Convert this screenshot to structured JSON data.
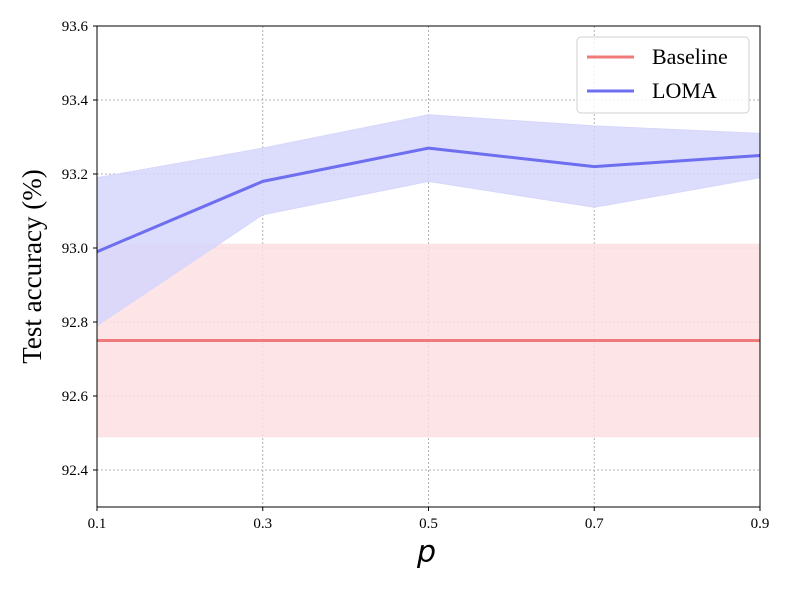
{
  "chart_data": {
    "type": "line",
    "title": "",
    "xlabel": "p",
    "ylabel": "Test accuracy (%)",
    "x": [
      0.1,
      0.3,
      0.5,
      0.7,
      0.9
    ],
    "xlim": [
      0.1,
      0.9
    ],
    "ylim": [
      92.3,
      93.6
    ],
    "xticks": [
      "0.1",
      "0.3",
      "0.5",
      "0.7",
      "0.9"
    ],
    "yticks": [
      "92.4",
      "92.6",
      "92.8",
      "93.0",
      "93.2",
      "93.4",
      "93.6"
    ],
    "grid": true,
    "legend_position": "top-right",
    "series": [
      {
        "name": "Baseline",
        "color": "#f07a7a",
        "band_color": "#fde1e3",
        "values": [
          92.75,
          92.75,
          92.75,
          92.75,
          92.75
        ],
        "lower": [
          92.49,
          92.49,
          92.49,
          92.49,
          92.49
        ],
        "upper": [
          93.01,
          93.01,
          93.01,
          93.01,
          93.01
        ]
      },
      {
        "name": "LOMA",
        "color": "#6e6ef0",
        "band_color": "#d6d6fb",
        "values": [
          92.99,
          93.18,
          93.27,
          93.22,
          93.25
        ],
        "lower": [
          92.79,
          93.09,
          93.18,
          93.11,
          93.19
        ],
        "upper": [
          93.19,
          93.27,
          93.36,
          93.33,
          93.31
        ]
      }
    ]
  }
}
